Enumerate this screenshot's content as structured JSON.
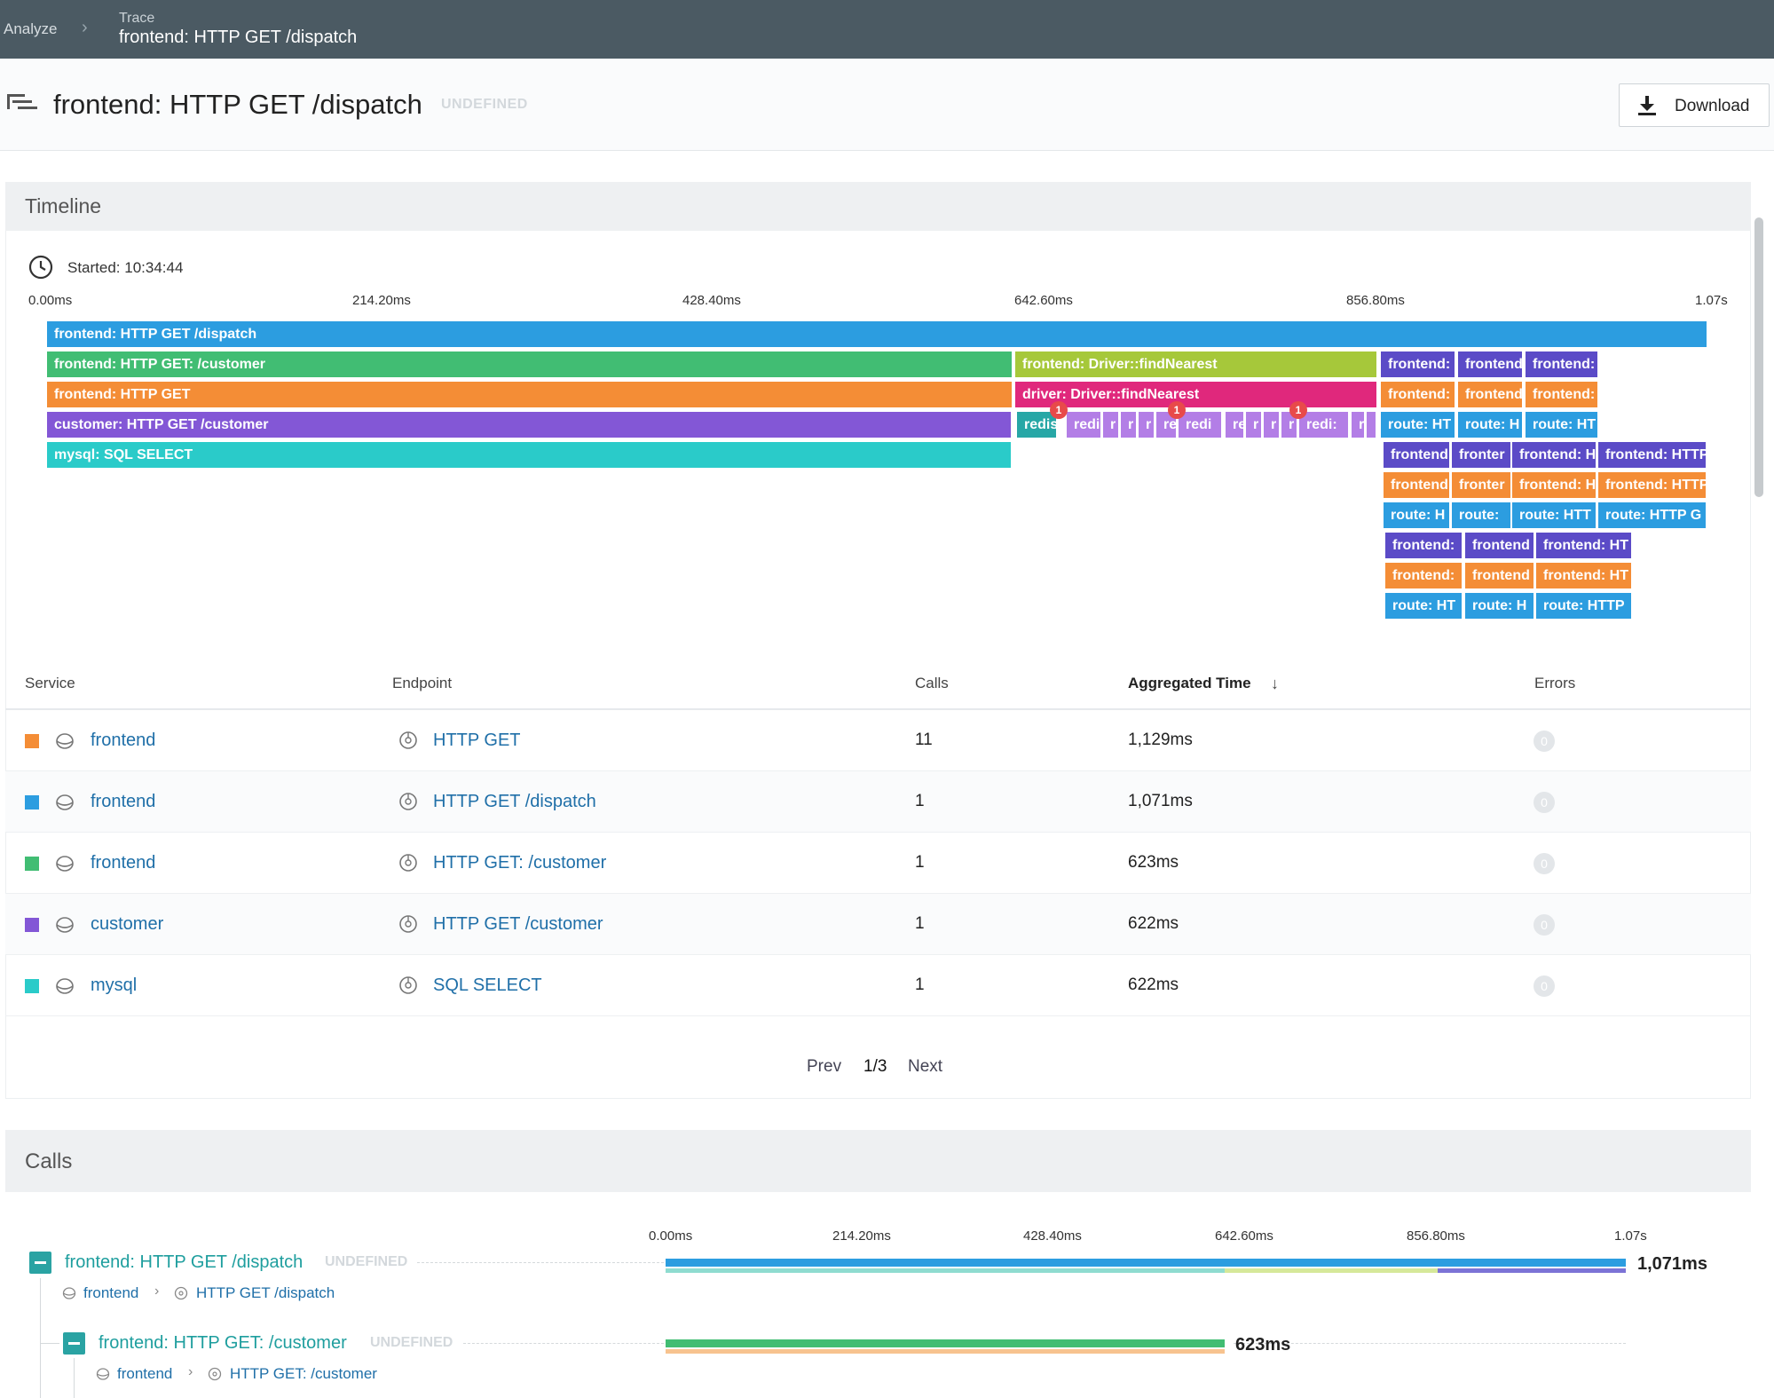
{
  "breadcrumb": {
    "root": "Analyze",
    "label": "Trace",
    "title": "frontend: HTTP GET /dispatch"
  },
  "header": {
    "title": "frontend: HTTP GET /dispatch",
    "state": "UNDEFINED",
    "download_label": "Download"
  },
  "timeline": {
    "section_title": "Timeline",
    "started": "Started: 10:34:44",
    "axis": [
      "0.00ms",
      "214.20ms",
      "428.40ms",
      "642.60ms",
      "856.80ms",
      "1.07s"
    ],
    "colors": {
      "blue": "#2c9de0",
      "green": "#41bd73",
      "orange": "#f48d36",
      "purple": "#8357d6",
      "teal": "#2acbc9",
      "lime": "#a6c83a",
      "pink": "#e0287c",
      "lavender": "#b37ee6",
      "darkteal": "#27a7a6",
      "indigo": "#5b4bc7"
    },
    "spans": [
      {
        "label": "frontend: HTTP GET /dispatch"
      },
      {
        "label": "frontend: HTTP GET: /customer"
      },
      {
        "label": "frontend: HTTP GET"
      },
      {
        "label": "customer: HTTP GET /customer"
      },
      {
        "label": "mysql: SQL SELECT"
      },
      {
        "label": "frontend: Driver::findNearest"
      },
      {
        "label": "driver: Driver::findNearest"
      },
      {
        "label": "redis"
      },
      {
        "label": "redi"
      },
      {
        "label": "re"
      },
      {
        "label": "redi"
      },
      {
        "label": "redi:"
      },
      {
        "label": "r"
      },
      {
        "label": "r"
      },
      {
        "label": "r"
      },
      {
        "label": "re"
      },
      {
        "label": "r"
      },
      {
        "label": "r"
      },
      {
        "label": "r"
      },
      {
        "label": "r"
      },
      {
        "label": "frontend:"
      },
      {
        "label": "frontend"
      },
      {
        "label": "frontend:"
      },
      {
        "label": "frontend:"
      },
      {
        "label": "frontend"
      },
      {
        "label": "frontend:"
      },
      {
        "label": "route: HT"
      },
      {
        "label": "route: H"
      },
      {
        "label": "route: HT"
      },
      {
        "label": "frontend"
      },
      {
        "label": "fronter"
      },
      {
        "label": "frontend: H"
      },
      {
        "label": "frontend: HTTP"
      },
      {
        "label": "frontend"
      },
      {
        "label": "fronter"
      },
      {
        "label": "frontend: H"
      },
      {
        "label": "frontend: HTTP"
      },
      {
        "label": "route: H"
      },
      {
        "label": "route:"
      },
      {
        "label": "route: HTT"
      },
      {
        "label": "route: HTTP G"
      },
      {
        "label": "frontend:"
      },
      {
        "label": "frontend"
      },
      {
        "label": "frontend: HT"
      },
      {
        "label": "frontend:"
      },
      {
        "label": "frontend"
      },
      {
        "label": "frontend: HT"
      },
      {
        "label": "route: HT"
      },
      {
        "label": "route: H"
      },
      {
        "label": "route: HTTP"
      }
    ],
    "errors": [
      "1",
      "1",
      "1"
    ]
  },
  "table": {
    "headers": {
      "service": "Service",
      "endpoint": "Endpoint",
      "calls": "Calls",
      "aggregated": "Aggregated Time",
      "errors": "Errors"
    },
    "rows": [
      {
        "service": "frontend",
        "endpoint": "HTTP GET",
        "calls": "11",
        "time": "1,129ms",
        "errors": "0",
        "color": "#f48d36"
      },
      {
        "service": "frontend",
        "endpoint": "HTTP GET /dispatch",
        "calls": "1",
        "time": "1,071ms",
        "errors": "0",
        "color": "#2c9de0"
      },
      {
        "service": "frontend",
        "endpoint": "HTTP GET: /customer",
        "calls": "1",
        "time": "623ms",
        "errors": "0",
        "color": "#41bd73"
      },
      {
        "service": "customer",
        "endpoint": "HTTP GET /customer",
        "calls": "1",
        "time": "622ms",
        "errors": "0",
        "color": "#8357d6"
      },
      {
        "service": "mysql",
        "endpoint": "SQL SELECT",
        "calls": "1",
        "time": "622ms",
        "errors": "0",
        "color": "#2acbc9"
      }
    ],
    "pager": {
      "prev": "Prev",
      "page": "1/3",
      "next": "Next"
    }
  },
  "calls": {
    "section_title": "Calls",
    "axis": [
      "0.00ms",
      "214.20ms",
      "428.40ms",
      "642.60ms",
      "856.80ms",
      "1.07s"
    ],
    "items": [
      {
        "title": "frontend: HTTP GET /dispatch",
        "state": "UNDEFINED",
        "service": "frontend",
        "endpoint": "HTTP GET /dispatch",
        "duration": "1,071ms"
      },
      {
        "title": "frontend: HTTP GET: /customer",
        "state": "UNDEFINED",
        "service": "frontend",
        "endpoint": "HTTP GET: /customer",
        "duration": "623ms"
      }
    ]
  }
}
